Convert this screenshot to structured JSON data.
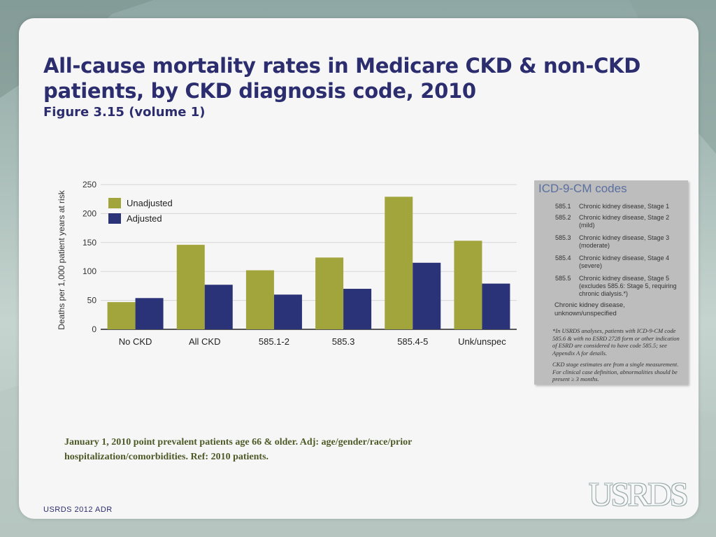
{
  "slide": {
    "title": "All-cause mortality rates in Medicare CKD & non-CKD patients, by CKD diagnosis code, 2010",
    "subtitle": "Figure 3.15 (volume 1)",
    "footnote": "January 1, 2010 point prevalent patients age 66 & older. Adj: age/gender/race/prior hospitalization/comorbidities. Ref: 2010 patients.",
    "footer": "USRDS 2012 ADR",
    "logo": "USRDS"
  },
  "colors": {
    "unadjusted": "#a2a43c",
    "adjusted": "#2b3378",
    "title": "#2b2d6e"
  },
  "chart_data": {
    "type": "bar",
    "title": "",
    "xlabel": "",
    "ylabel": "Deaths per 1,000 patient years at risk",
    "ylim": [
      0,
      250
    ],
    "yticks": [
      0,
      50,
      100,
      150,
      200,
      250
    ],
    "grid": true,
    "legend_position": "top-left",
    "categories": [
      "No CKD",
      "All CKD",
      "585.1-2",
      "585.3",
      "585.4-5",
      "Unk/unspec"
    ],
    "series": [
      {
        "name": "Unadjusted",
        "values": [
          47,
          146,
          102,
          124,
          229,
          153
        ]
      },
      {
        "name": "Adjusted",
        "values": [
          54,
          77,
          60,
          70,
          115,
          79
        ]
      }
    ]
  },
  "icd": {
    "title": "ICD-9-CM codes",
    "codes": [
      {
        "code": "585.1",
        "desc": "Chronic kidney disease, Stage 1"
      },
      {
        "code": "585.2",
        "desc": "Chronic kidney disease, Stage 2 (mild)"
      },
      {
        "code": "585.3",
        "desc": "Chronic kidney disease, Stage 3 (moderate)"
      },
      {
        "code": "585.4",
        "desc": "Chronic kidney disease, Stage 4 (severe)"
      },
      {
        "code": "585.5",
        "desc": "Chronic kidney disease, Stage 5 (excludes 585.6: Stage 5, requiring chronic dialysis.*)"
      }
    ],
    "unknown": "Chronic kidney disease, unknown/unspecified",
    "note1": "*In USRDS analyses, patients with ICD-9-CM code 585.6 & with no ESRD 2728 form or other indication of ESRD are considered to have code 585.5; see Appendix A for details.",
    "note2": "CKD stage estimates are from a single measurement. For clinical case definition, abnormalities should be present ≥ 3 months."
  }
}
